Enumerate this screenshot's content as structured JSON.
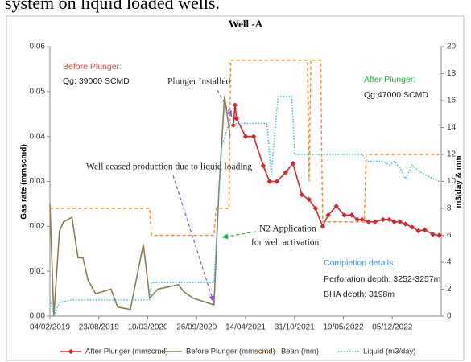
{
  "caption_fragment": "system on liquid loaded wells.",
  "chart_data": {
    "type": "line",
    "title": "Well -A",
    "ylabel": "Gas rate (mmscmd)",
    "y2label": "m3/day & mm",
    "xlim": [
      "2019-02-04",
      "2023-06-23"
    ],
    "xticks": [
      {
        "value": "2019-02-04",
        "label": "04/02/2019"
      },
      {
        "value": "2019-08-23",
        "label": "23/08/2019"
      },
      {
        "value": "2020-03-10",
        "label": "10/03/2020"
      },
      {
        "value": "2020-09-26",
        "label": "26/09/2020"
      },
      {
        "value": "2021-04-14",
        "label": "14/04/2021"
      },
      {
        "value": "2021-10-31",
        "label": "31/10/2021"
      },
      {
        "value": "2022-05-19",
        "label": "19/05/2022"
      },
      {
        "value": "2022-12-05",
        "label": "05/12/2022"
      }
    ],
    "ylim": [
      0,
      0.06
    ],
    "yticks": [
      {
        "value": 0,
        "label": "0.00"
      },
      {
        "value": 0.01,
        "label": "0.01"
      },
      {
        "value": 0.02,
        "label": "0.02"
      },
      {
        "value": 0.03,
        "label": "0.03"
      },
      {
        "value": 0.04,
        "label": "0.04"
      },
      {
        "value": 0.05,
        "label": "0.05"
      },
      {
        "value": 0.06,
        "label": "0.06"
      }
    ],
    "y2lim": [
      0,
      20
    ],
    "y2ticks": [
      0,
      2,
      4,
      6,
      8,
      10,
      12,
      14,
      16,
      18,
      20
    ],
    "series": [
      {
        "name": "After Plunger (mmscmd)",
        "color": "#d9232b",
        "line_style": "solid",
        "marker": "diamond",
        "x": [
          "2021-02-23",
          "2021-03-02",
          "2021-03-08",
          "2021-04-14",
          "2021-05-17",
          "2021-06-25",
          "2021-07-21",
          "2021-08-20",
          "2021-09-25",
          "2021-10-25",
          "2021-11-30",
          "2021-12-29",
          "2022-01-25",
          "2022-02-23",
          "2022-03-18",
          "2022-04-20",
          "2022-05-23",
          "2022-06-22",
          "2022-07-15",
          "2022-08-03",
          "2022-08-30",
          "2022-09-25",
          "2022-10-28",
          "2022-11-23",
          "2022-12-13",
          "2023-01-05",
          "2023-01-28",
          "2023-02-24",
          "2023-03-22",
          "2023-04-17",
          "2023-05-20",
          "2023-06-15"
        ],
        "values": [
          0.0425,
          0.047,
          0.044,
          0.04,
          0.04,
          0.0335,
          0.03,
          0.03,
          0.032,
          0.034,
          0.027,
          0.026,
          0.024,
          0.02,
          0.0225,
          0.0245,
          0.0225,
          0.0225,
          0.0215,
          0.0215,
          0.021,
          0.021,
          0.0215,
          0.0215,
          0.021,
          0.021,
          0.0205,
          0.0198,
          0.019,
          0.0192,
          0.0182,
          0.018
        ]
      },
      {
        "name": "Before Plunger (mmscmd)",
        "color": "#8b7d52",
        "line_style": "solid",
        "x": [
          "2019-02-04",
          "2019-02-20",
          "2019-03-15",
          "2019-04-01",
          "2019-05-05",
          "2019-05-30",
          "2019-06-19",
          "2019-07-10",
          "2019-08-10",
          "2019-10-12",
          "2019-11-08",
          "2019-12-30",
          "2020-02-21",
          "2020-03-18",
          "2020-04-20",
          "2020-07-14",
          "2020-08-03",
          "2020-09-11",
          "2020-12-06",
          "2020-12-26",
          "2021-01-18",
          "2021-02-10"
        ],
        "values": [
          0.025,
          0,
          0.019,
          0.021,
          0.022,
          0.013,
          0.013,
          0.008,
          0.005,
          0.006,
          0.002,
          0.0015,
          0.016,
          0.004,
          0.006,
          0.007,
          0.0055,
          0.004,
          0.0025,
          0.028,
          0.049,
          0.04
        ]
      },
      {
        "name": "Bean (mm)",
        "color": "#f08a24",
        "line_style": "dashed",
        "axis": "y2",
        "x": [
          "2019-02-04",
          "2020-03-18",
          "2020-03-25",
          "2020-12-06",
          "2020-12-15",
          "2021-02-05",
          "2021-02-12",
          "2021-12-23",
          "2021-12-30",
          "2022-01-06",
          "2022-02-15",
          "2022-02-23",
          "2022-08-12",
          "2022-08-20",
          "2023-06-15"
        ],
        "values": [
          8,
          8,
          6,
          6,
          8,
          8,
          19,
          19,
          10,
          19,
          19,
          7,
          7,
          12,
          12
        ]
      },
      {
        "name": "Liquid (m3/day)",
        "color": "#2fb3e6",
        "line_style": "dotted",
        "axis": "y2",
        "x": [
          "2019-02-04",
          "2019-02-20",
          "2019-03-15",
          "2019-05-01",
          "2020-03-18",
          "2020-03-25",
          "2020-12-06",
          "2021-01-05",
          "2021-02-05",
          "2021-07-10",
          "2021-07-28",
          "2021-08-15",
          "2021-08-25",
          "2021-10-20",
          "2021-11-01",
          "2022-08-05",
          "2022-08-20",
          "2022-10-28",
          "2022-11-23",
          "2022-12-13",
          "2023-01-05",
          "2023-01-28",
          "2023-02-24",
          "2023-03-22",
          "2023-04-17",
          "2023-05-20",
          "2023-06-15"
        ],
        "values": [
          1.2,
          0,
          1.0,
          1.2,
          1.2,
          2.5,
          2.5,
          12.5,
          14.3,
          14.3,
          10.5,
          14.3,
          16.3,
          16.3,
          12,
          12,
          11.5,
          11.5,
          11.2,
          11.5,
          11,
          10.2,
          11.2,
          10.8,
          10.5,
          10.2,
          10
        ]
      }
    ],
    "annotations": [
      {
        "text": "Before Plunger:",
        "color": "#e0443a"
      },
      {
        "text": "Qg: 39000 SCMD",
        "color": "#222222"
      },
      {
        "text": "After Plunger:",
        "color": "#22b03c"
      },
      {
        "text": "Qg:47000 SCMD",
        "color": "#222222"
      },
      {
        "text": "Plunger Installed",
        "color": "#222222"
      },
      {
        "text": "Well ceased production due to liquid loading",
        "color": "#222222"
      },
      {
        "text": "N2 Application",
        "color": "#222222"
      },
      {
        "text": "for well activation",
        "color": "#222222"
      },
      {
        "text": "Completion details:",
        "color": "#3a8fd6"
      },
      {
        "text": "Perforation depth: 3252-3257m",
        "color": "#222222"
      },
      {
        "text": "BHA depth: 3198m",
        "color": "#222222"
      }
    ]
  }
}
